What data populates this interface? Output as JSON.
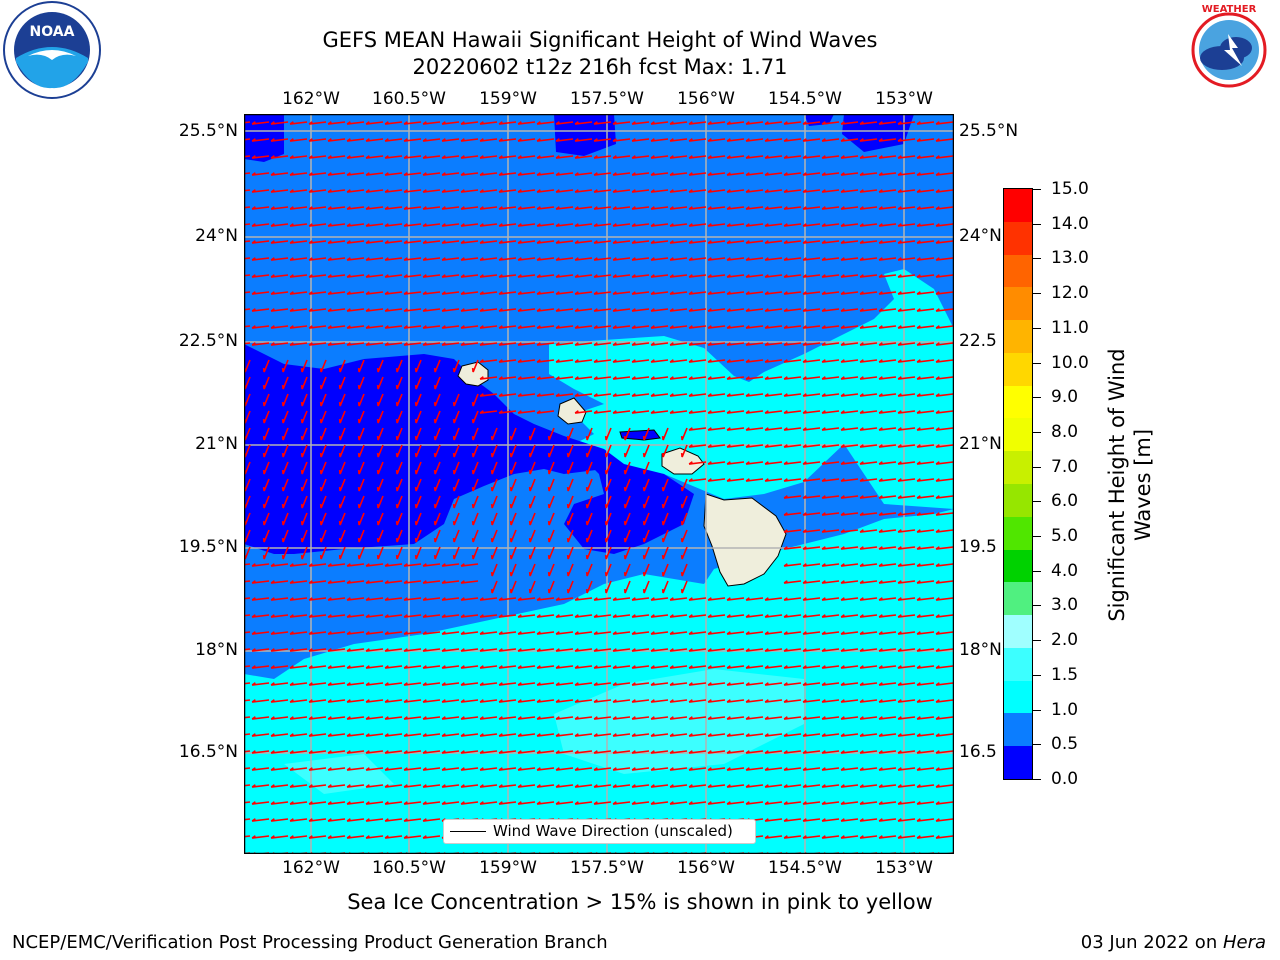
{
  "title_line1": "GEFS MEAN Hawaii Significant Height of Wind Waves",
  "title_line2": "20220602 t12z 216h fcst   Max: 1.71",
  "lon_labels": [
    "162°W",
    "160.5°W",
    "159°W",
    "157.5°W",
    "156°W",
    "154.5°W",
    "153°W"
  ],
  "lat_labels": [
    "25.5°N",
    "24°N",
    "22.5°N",
    "21°N",
    "19.5°N",
    "18°N",
    "16.5°N"
  ],
  "right_lat_labels": [
    "25.5°N",
    "24°N",
    "22.5",
    "21°N",
    "19.5",
    "18°N",
    "16.5"
  ],
  "colorbar": {
    "ticks": [
      "15.0",
      "14.0",
      "13.0",
      "12.0",
      "11.0",
      "10.0",
      "9.0",
      "8.0",
      "7.0",
      "6.0",
      "5.0",
      "4.0",
      "3.0",
      "2.0",
      "1.5",
      "1.0",
      "0.5",
      "0.0"
    ],
    "colors_bottom_up": [
      "#0000ff",
      "#0b7dff",
      "#00ffff",
      "#3cffff",
      "#a0ffff",
      "#50f080",
      "#00d200",
      "#50e600",
      "#96e600",
      "#c8f000",
      "#f0ff00",
      "#ffff00",
      "#ffd700",
      "#ffb400",
      "#ff8c00",
      "#ff6400",
      "#ff3200",
      "#ff0000"
    ],
    "title_line1": "Significant Height of Wind",
    "title_line2": "Waves [m]"
  },
  "legend_label": "Wind Wave Direction (unscaled)",
  "sea_ice_note": "Sea Ice Concentration > 15% is shown in pink to yellow",
  "footer_left": "NCEP/EMC/Verification Post Processing Product Generation Branch",
  "footer_right_prefix": "03 Jun 2022 on ",
  "footer_right_host": "Hera",
  "logos": {
    "left": "noaa-logo",
    "right": "national-weather-service-logo"
  },
  "arrow_color": "#ff0000",
  "land_color": "#efeedc"
}
